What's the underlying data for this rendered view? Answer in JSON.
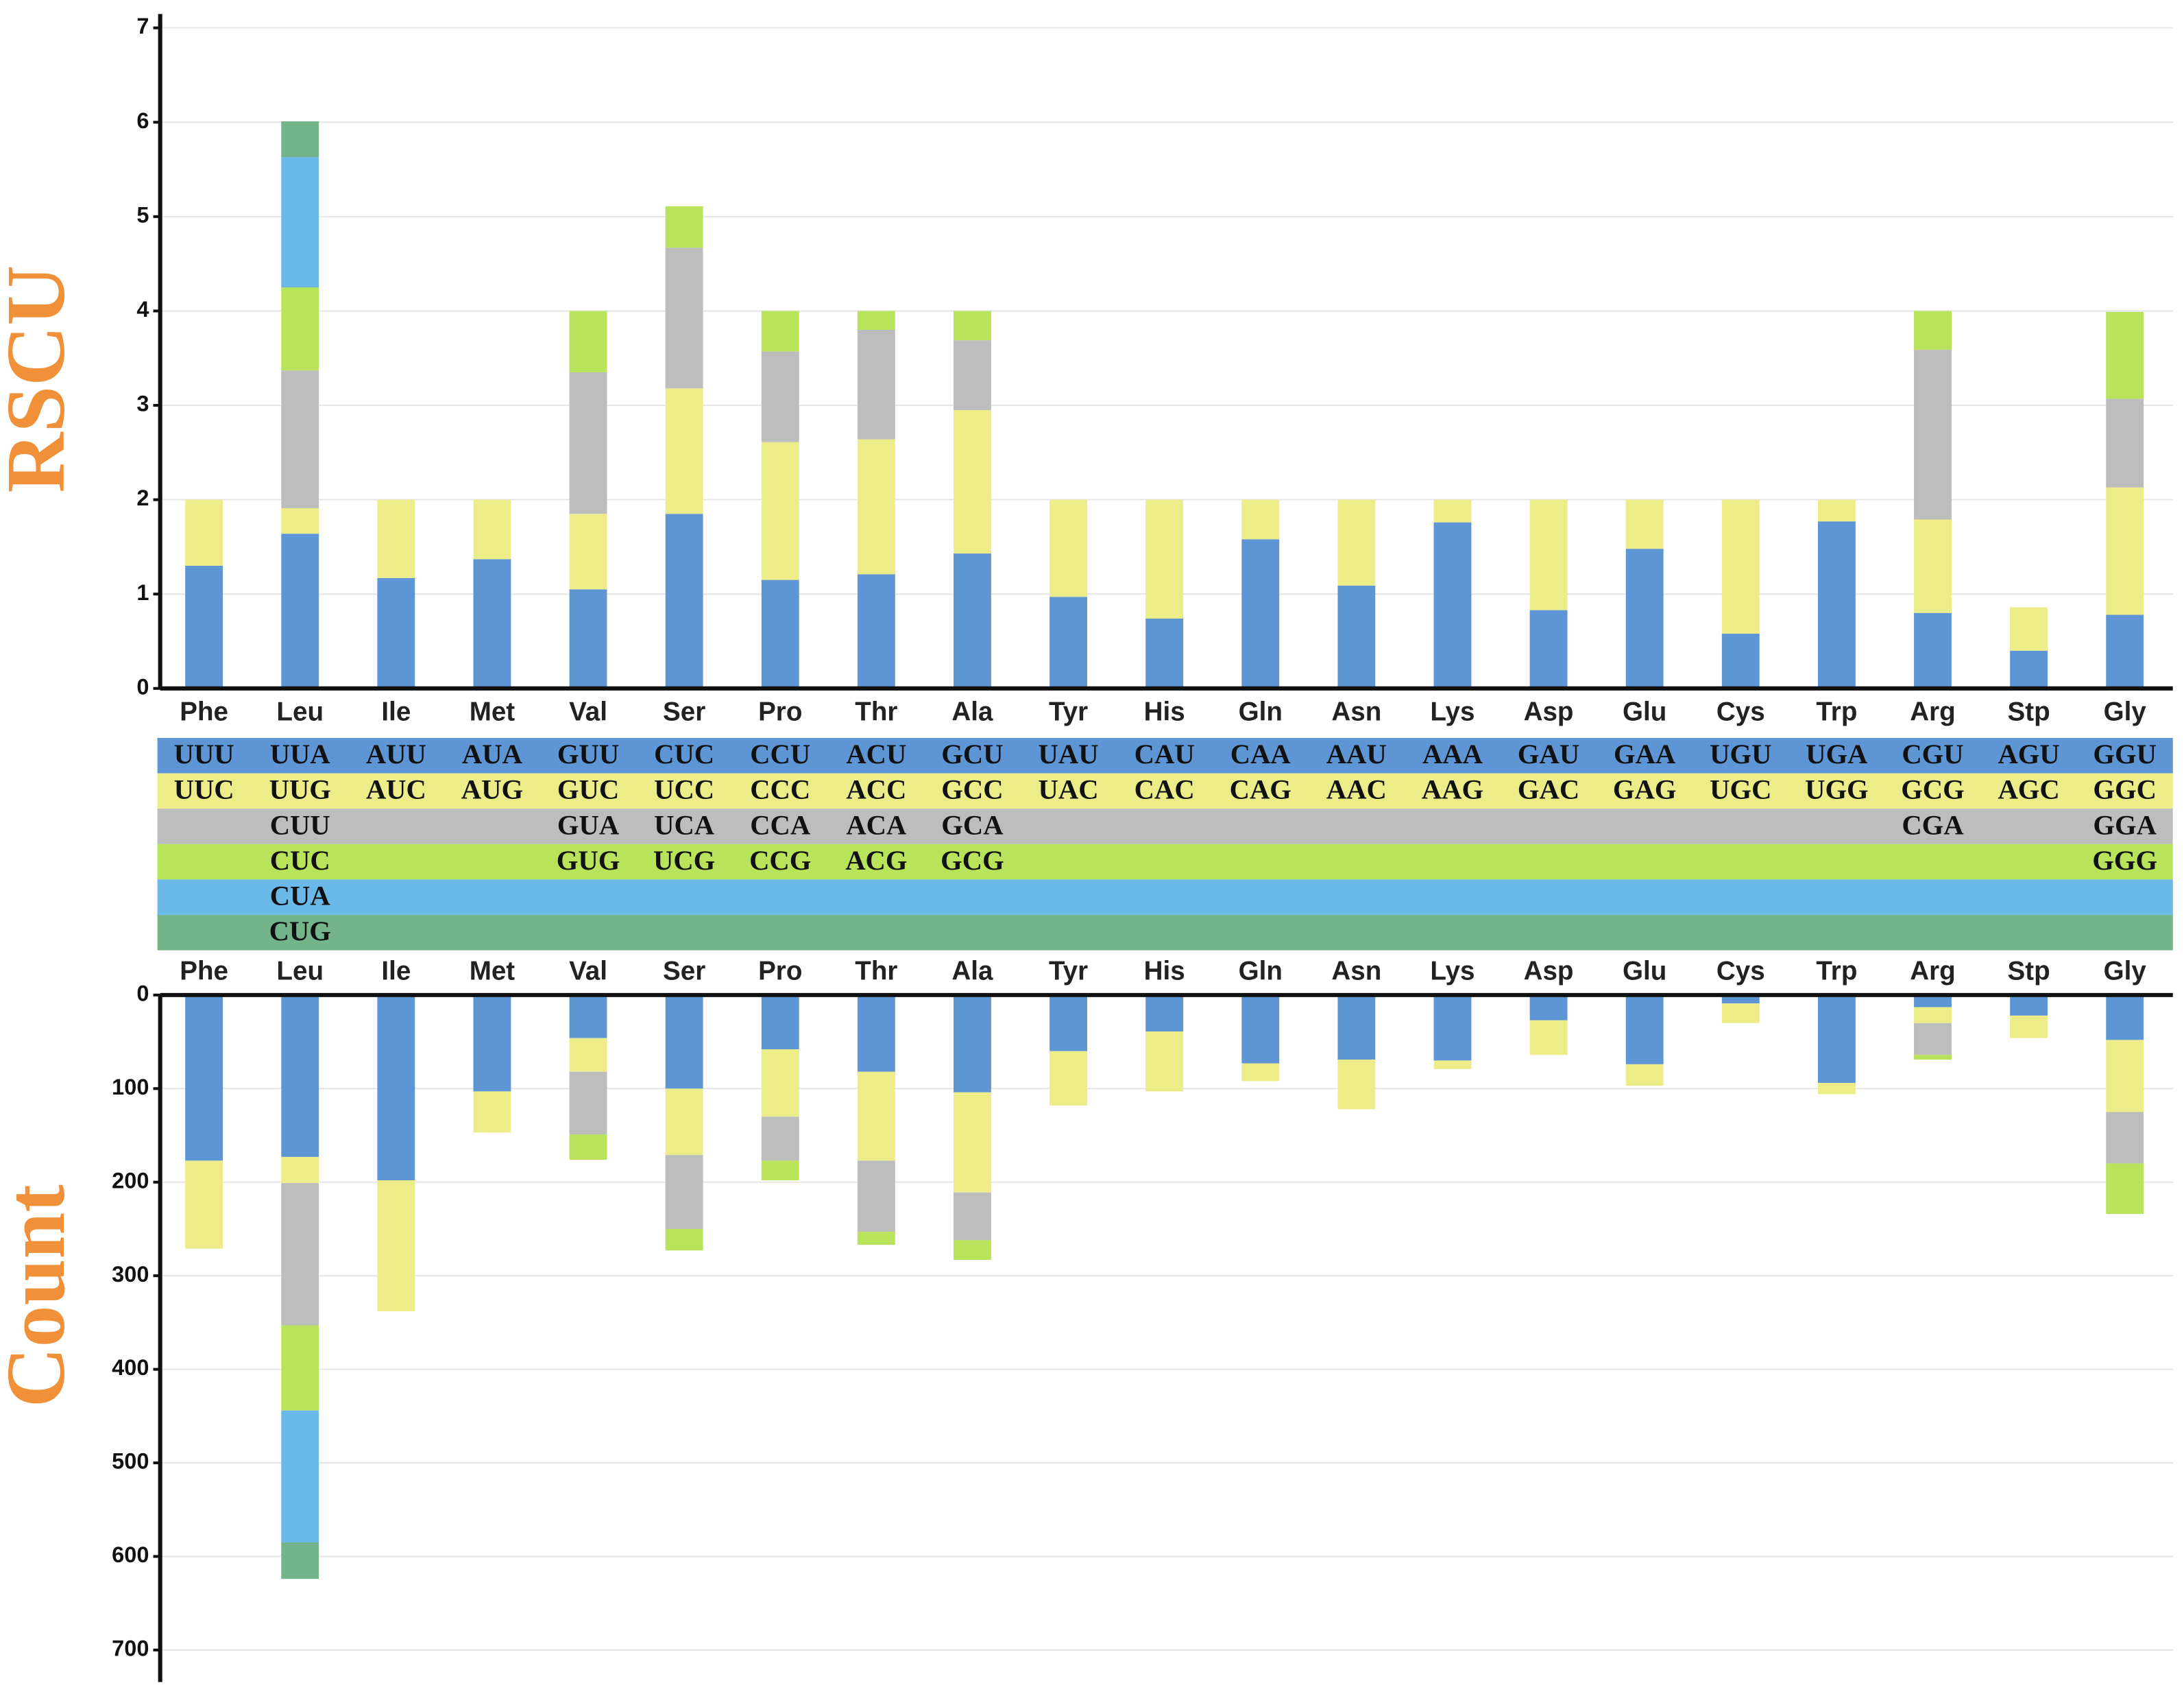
{
  "chart_data": [
    {
      "type": "bar",
      "stacked": true,
      "y_label": "RSCU",
      "ylim": [
        0,
        7
      ],
      "yticks": [
        0,
        1,
        2,
        3,
        4,
        5,
        6,
        7
      ],
      "grid": true,
      "y_inverted": false,
      "categories": [
        "Phe",
        "Leu",
        "Ile",
        "Met",
        "Val",
        "Ser",
        "Pro",
        "Thr",
        "Ala",
        "Tyr",
        "His",
        "Gln",
        "Asn",
        "Lys",
        "Asp",
        "Glu",
        "Cys",
        "Trp",
        "Arg",
        "Stp",
        "Gly"
      ],
      "series": [
        {
          "color": "#5e95d4",
          "values": [
            1.3,
            1.64,
            1.17,
            1.37,
            1.05,
            1.85,
            1.15,
            1.21,
            1.43,
            0.97,
            0.74,
            1.58,
            1.09,
            1.76,
            0.83,
            1.48,
            0.58,
            1.77,
            0.8,
            0.4,
            0.78
          ]
        },
        {
          "color": "#ecec88",
          "values": [
            0.7,
            0.27,
            0.83,
            0.63,
            0.8,
            1.33,
            1.46,
            1.43,
            1.52,
            1.03,
            1.26,
            0.42,
            0.91,
            0.24,
            1.17,
            0.52,
            1.42,
            0.23,
            0.99,
            0.46,
            1.35
          ]
        },
        {
          "color": "#bdbdbd",
          "values": [
            null,
            1.46,
            null,
            null,
            1.5,
            1.49,
            0.96,
            1.16,
            0.74,
            null,
            null,
            null,
            null,
            null,
            null,
            null,
            null,
            null,
            1.8,
            null,
            0.94
          ]
        },
        {
          "color": "#b8e35a",
          "values": [
            null,
            0.88,
            null,
            null,
            0.65,
            0.44,
            0.43,
            0.2,
            0.31,
            null,
            null,
            null,
            null,
            null,
            null,
            null,
            null,
            null,
            0.41,
            null,
            0.92
          ]
        },
        {
          "color": "#6bb9e8",
          "values": [
            null,
            1.38,
            null,
            null,
            null,
            null,
            null,
            null,
            null,
            null,
            null,
            null,
            null,
            null,
            null,
            null,
            null,
            null,
            null,
            null,
            null
          ]
        },
        {
          "color": "#74b48a",
          "values": [
            null,
            0.38,
            null,
            null,
            null,
            null,
            null,
            null,
            null,
            null,
            null,
            null,
            null,
            null,
            null,
            null,
            null,
            null,
            null,
            null,
            null
          ]
        }
      ]
    },
    {
      "type": "bar",
      "stacked": true,
      "y_label": "Count",
      "ylim": [
        0,
        700
      ],
      "yticks": [
        0,
        100,
        200,
        300,
        400,
        500,
        600,
        700
      ],
      "grid": true,
      "y_inverted": true,
      "categories": [
        "Phe",
        "Leu",
        "Ile",
        "Met",
        "Val",
        "Ser",
        "Pro",
        "Thr",
        "Ala",
        "Tyr",
        "His",
        "Gln",
        "Asn",
        "Lys",
        "Asp",
        "Glu",
        "Cys",
        "Trp",
        "Arg",
        "Stp",
        "Gly"
      ],
      "series": [
        {
          "color": "#5e95d4",
          "values": [
            177,
            173,
            198,
            103,
            46,
            100,
            58,
            82,
            104,
            60,
            39,
            73,
            69,
            70,
            27,
            74,
            9,
            94,
            13,
            22,
            48
          ]
        },
        {
          "color": "#ecec88",
          "values": [
            94,
            28,
            140,
            44,
            36,
            71,
            72,
            95,
            107,
            58,
            64,
            19,
            53,
            9,
            37,
            23,
            21,
            12,
            17,
            24,
            77
          ]
        },
        {
          "color": "#bdbdbd",
          "values": [
            null,
            152,
            null,
            null,
            67,
            79,
            47,
            76,
            51,
            null,
            null,
            null,
            null,
            null,
            null,
            null,
            null,
            null,
            34,
            null,
            55
          ]
        },
        {
          "color": "#b8e35a",
          "values": [
            null,
            91,
            null,
            null,
            27,
            23,
            21,
            14,
            21,
            null,
            null,
            null,
            null,
            null,
            null,
            null,
            null,
            null,
            5,
            null,
            54
          ]
        },
        {
          "color": "#6bb9e8",
          "values": [
            null,
            141,
            null,
            null,
            null,
            null,
            null,
            null,
            null,
            null,
            null,
            null,
            null,
            null,
            null,
            null,
            null,
            null,
            null,
            null,
            null
          ]
        },
        {
          "color": "#74b48a",
          "values": [
            null,
            39,
            null,
            null,
            null,
            null,
            null,
            null,
            null,
            null,
            null,
            null,
            null,
            null,
            null,
            null,
            null,
            null,
            null,
            null,
            null
          ]
        }
      ]
    }
  ],
  "codon_table": {
    "row_colors": [
      "#5e95d4",
      "#ecec88",
      "#bdbdbd",
      "#b8e35a",
      "#6bb9e8",
      "#74b48a"
    ],
    "rows": [
      [
        "UUU",
        "UUA",
        "AUU",
        "AUA",
        "GUU",
        "CUC",
        "CCU",
        "ACU",
        "GCU",
        "UAU",
        "CAU",
        "CAA",
        "AAU",
        "AAA",
        "GAU",
        "GAA",
        "UGU",
        "UGA",
        "CGU",
        "AGU",
        "GGU"
      ],
      [
        "UUC",
        "UUG",
        "AUC",
        "AUG",
        "GUC",
        "UCC",
        "CCC",
        "ACC",
        "GCC",
        "UAC",
        "CAC",
        "CAG",
        "AAC",
        "AAG",
        "GAC",
        "GAG",
        "UGC",
        "UGG",
        "GCG",
        "AGC",
        "GGC"
      ],
      [
        null,
        "CUU",
        null,
        null,
        "GUA",
        "UCA",
        "CCA",
        "ACA",
        "GCA",
        null,
        null,
        null,
        null,
        null,
        null,
        null,
        null,
        null,
        "CGA",
        null,
        "GGA"
      ],
      [
        null,
        "CUC",
        null,
        null,
        "GUG",
        "UCG",
        "CCG",
        "ACG",
        "GCG",
        null,
        null,
        null,
        null,
        null,
        null,
        null,
        null,
        null,
        null,
        null,
        "GGG"
      ],
      [
        null,
        "CUA",
        null,
        null,
        null,
        null,
        null,
        null,
        null,
        null,
        null,
        null,
        null,
        null,
        null,
        null,
        null,
        null,
        null,
        null,
        null
      ],
      [
        null,
        "CUG",
        null,
        null,
        null,
        null,
        null,
        null,
        null,
        null,
        null,
        null,
        null,
        null,
        null,
        null,
        null,
        null,
        null,
        null,
        null
      ]
    ]
  }
}
